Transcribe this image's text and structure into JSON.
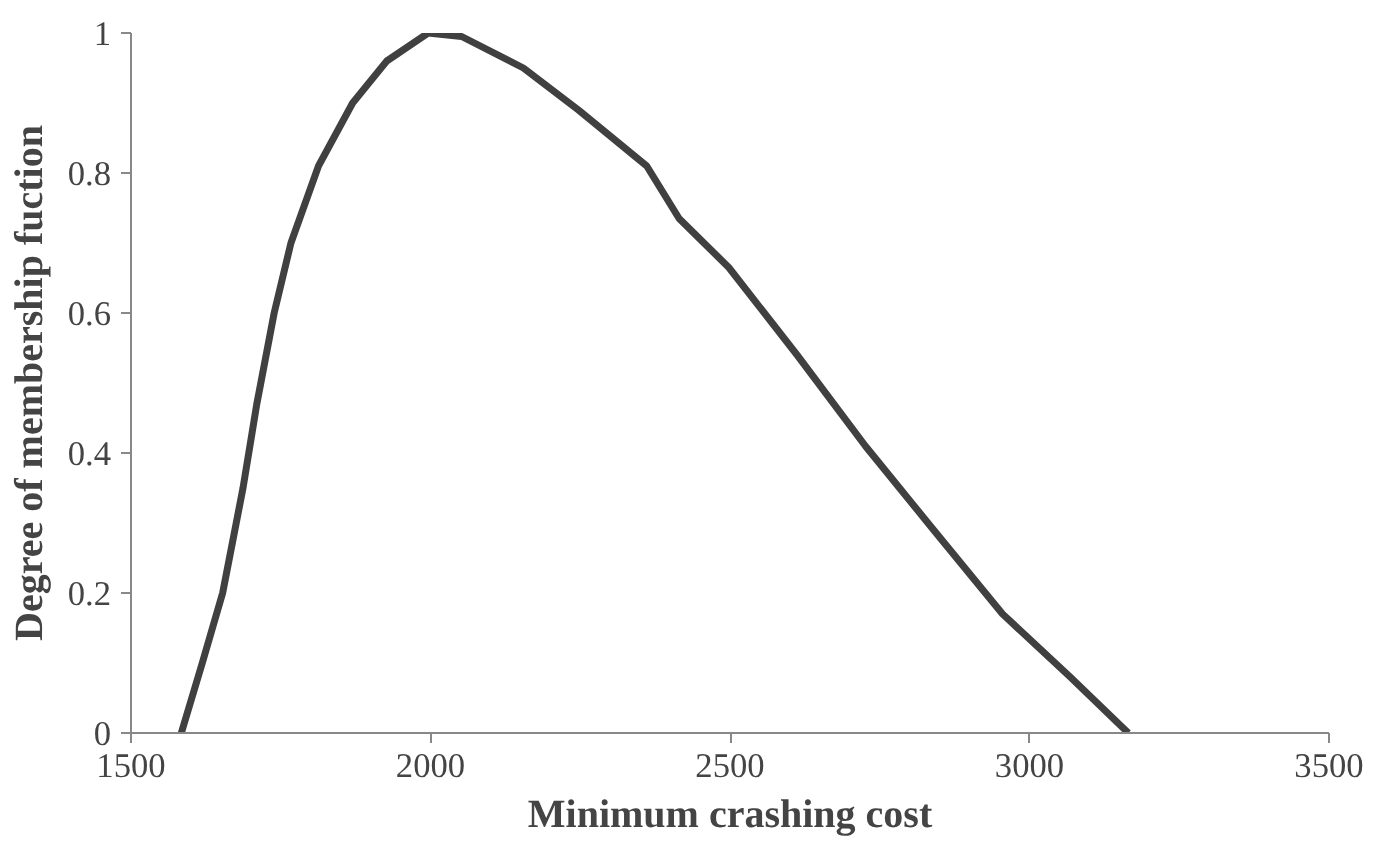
{
  "chart_data": {
    "type": "line",
    "xlabel": "Minimum crashing cost",
    "ylabel": "Degree of membership fuction",
    "xlim": [
      1500,
      3500
    ],
    "xticks": [
      1500,
      2000,
      2500,
      3000,
      3500
    ],
    "ylim": [
      0,
      1
    ],
    "yticks": [
      0,
      0.2,
      0.4,
      0.6,
      0.8,
      1
    ],
    "grid": false,
    "series": [
      {
        "color": "#404040",
        "x": [
          1584,
          1619,
          1653,
          1687,
          1710,
          1739,
          1767,
          1813,
          1870,
          1927,
          1996,
          2052,
          2155,
          2247,
          2361,
          2415,
          2498,
          2612,
          2726,
          2840,
          2955,
          3068,
          3165
        ],
        "values": [
          0,
          0.1,
          0.2,
          0.35,
          0.47,
          0.6,
          0.7,
          0.81,
          0.9,
          0.96,
          1.0,
          0.995,
          0.95,
          0.89,
          0.81,
          0.735,
          0.665,
          0.54,
          0.41,
          0.29,
          0.17,
          0.08,
          0
        ]
      }
    ]
  }
}
